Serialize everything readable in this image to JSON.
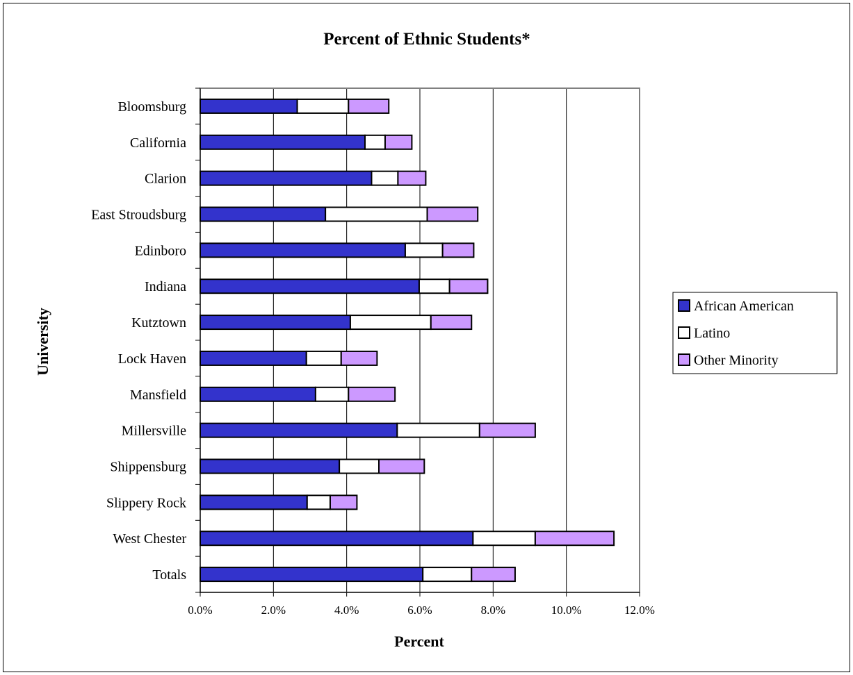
{
  "chart_data": {
    "type": "bar",
    "orientation": "horizontal",
    "stacked": true,
    "title": "Percent of Ethnic Students*",
    "xlabel": "Percent",
    "ylabel": "University",
    "xlim": [
      0,
      12
    ],
    "x_ticks": [
      "0.0%",
      "2.0%",
      "4.0%",
      "6.0%",
      "8.0%",
      "10.0%",
      "12.0%"
    ],
    "grid": "vertical",
    "legend_position": "right",
    "categories": [
      "Bloomsburg",
      "California",
      "Clarion",
      "East Stroudsburg",
      "Edinboro",
      "Indiana",
      "Kutztown",
      "Lock Haven",
      "Mansfield",
      "Millersville",
      "Shippensburg",
      "Slippery Rock",
      "West Chester",
      "Totals"
    ],
    "series": [
      {
        "name": "African American",
        "color": "#3333CC",
        "values": [
          2.65,
          4.5,
          4.68,
          3.42,
          5.6,
          5.98,
          4.1,
          2.9,
          3.15,
          5.38,
          3.8,
          2.92,
          7.45,
          6.08
        ]
      },
      {
        "name": "Latino",
        "color": "#FFFFFF",
        "values": [
          1.4,
          0.55,
          0.72,
          2.78,
          1.02,
          0.83,
          2.2,
          0.95,
          0.9,
          2.25,
          1.08,
          0.63,
          1.7,
          1.33
        ]
      },
      {
        "name": "Other Minority",
        "color": "#CC99FF",
        "values": [
          1.1,
          0.73,
          0.76,
          1.38,
          0.85,
          1.04,
          1.11,
          0.98,
          1.27,
          1.52,
          1.24,
          0.73,
          2.15,
          1.19
        ]
      }
    ]
  }
}
